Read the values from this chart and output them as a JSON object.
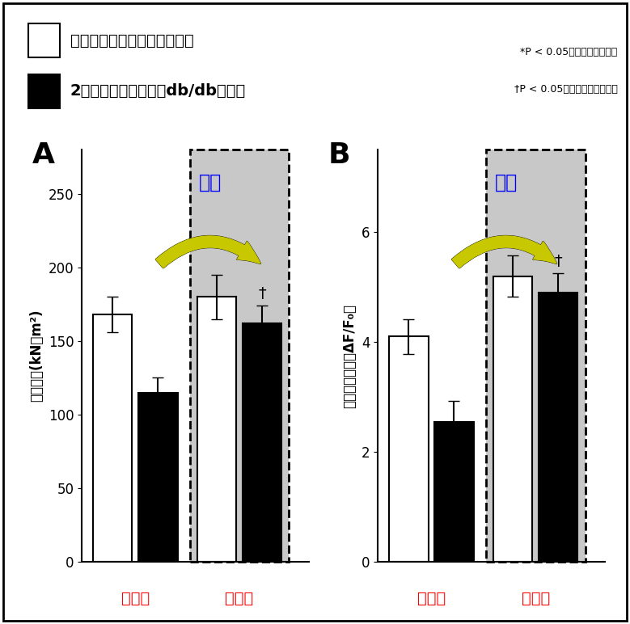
{
  "legend_item1": "健康的模型动物（控制小鼠）",
  "legend_item2": "2型糖尿病模型动物（db/db小鼠）",
  "note_line1": "*P < 0.05，群组之间的差别",
  "note_line2": "†P < 0.05，与普通群组的比较",
  "panel_A": {
    "label": "A",
    "ylabel": "肌肉力量(kN／m²)",
    "xlabel_pre": "运动前",
    "xlabel_post": "运动后",
    "ylim": [
      0,
      280
    ],
    "yticks": [
      0,
      50,
      100,
      150,
      200,
      250
    ],
    "bar_white_pre": 168,
    "bar_black_pre": 115,
    "bar_white_post": 180,
    "bar_black_post": 162,
    "err_white_pre": 12,
    "err_black_pre": 10,
    "err_white_post": 15,
    "err_black_post": 12,
    "improvement_text": "改善"
  },
  "panel_B": {
    "label": "B",
    "ylabel": "细胞内钓离子（ΔF/F₀）",
    "xlabel_pre": "运动前",
    "xlabel_post": "运动后",
    "ylim": [
      0,
      7.5
    ],
    "yticks": [
      0,
      2,
      4,
      6
    ],
    "bar_white_pre": 4.1,
    "bar_black_pre": 2.55,
    "bar_white_post": 5.2,
    "bar_black_post": 4.9,
    "err_white_pre": 0.32,
    "err_black_pre": 0.38,
    "err_white_post": 0.38,
    "err_black_post": 0.35,
    "improvement_text": "改善"
  },
  "background_color": "#ffffff",
  "highlight_color": "#c8c8c8",
  "dashed_box_color": "#000000",
  "arrow_fill_color": "#c8c800",
  "arrow_outline_color": "#000000",
  "improvement_color": "#0000ff",
  "xlabel_color": "#ff0000"
}
